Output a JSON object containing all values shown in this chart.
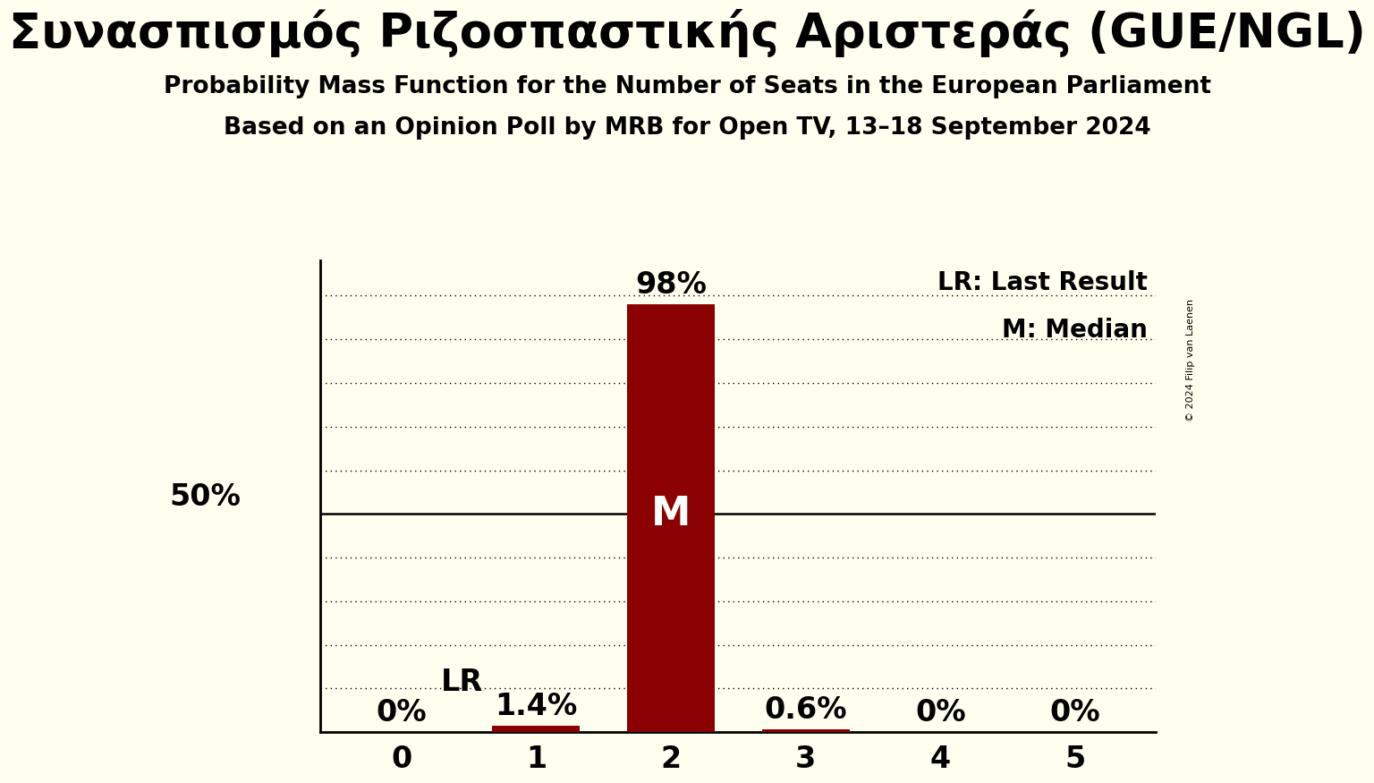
{
  "title": "Συνασπισμός Ριζοσπαστικής Αριστεράς (GUE/NGL)",
  "subtitle1": "Probability Mass Function for the Number of Seats in the European Parliament",
  "subtitle2": "Based on an Opinion Poll by MRB for Open TV, 13–18 September 2024",
  "categories": [
    0,
    1,
    2,
    3,
    4,
    5
  ],
  "values": [
    0.0,
    0.014,
    0.98,
    0.006,
    0.0,
    0.0
  ],
  "pct_labels": [
    "0%",
    "1.4%",
    "98%",
    "0.6%",
    "0%",
    "0%"
  ],
  "bar_color": "#8b0000",
  "background_color": "#fffff0",
  "ylabel_50": "50%",
  "lr_bar": 1,
  "median_bar": 2,
  "copyright_text": "© 2024 Filip van Laenen",
  "legend_lr": "LR: Last Result",
  "legend_m": "M: Median",
  "ylim": [
    0,
    1.08
  ],
  "ytick_positions": [
    0.0,
    0.1,
    0.2,
    0.3,
    0.4,
    0.5,
    0.6,
    0.7,
    0.8,
    0.9,
    1.0
  ],
  "bar_width": 0.65
}
